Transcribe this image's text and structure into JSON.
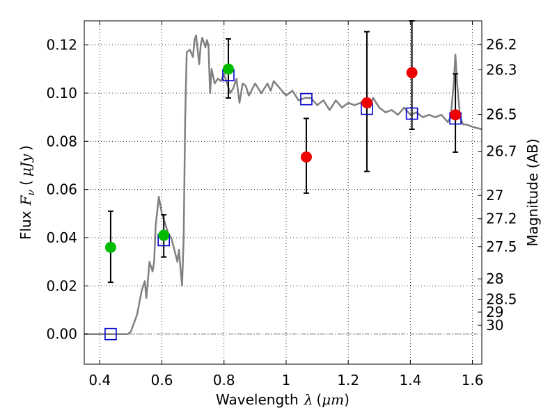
{
  "chart_data": {
    "type": "scatter",
    "xlabel": {
      "text": "Wavelength",
      "symbol": "λ",
      "unit_open": "(",
      "unit": "μm",
      "unit_close": ")"
    },
    "ylabel": {
      "text": "Flux",
      "symbol": "F",
      "subscript": "ν",
      "unit_open": "(",
      "unit": "μJy",
      "unit_close": ")"
    },
    "y2label": "Magnitude (AB)",
    "xlim": [
      0.35,
      1.63
    ],
    "ylim": [
      -0.0125,
      0.13
    ],
    "x_ticks": [
      {
        "v": 0.4,
        "label": "0.4"
      },
      {
        "v": 0.6,
        "label": "0.6"
      },
      {
        "v": 0.8,
        "label": "0.8"
      },
      {
        "v": 1.0,
        "label": "1"
      },
      {
        "v": 1.2,
        "label": "1.2"
      },
      {
        "v": 1.4,
        "label": "1.4"
      },
      {
        "v": 1.6,
        "label": "1.6"
      }
    ],
    "y_ticks": [
      {
        "v": 0.0,
        "label": "0.00"
      },
      {
        "v": 0.02,
        "label": "0.02"
      },
      {
        "v": 0.04,
        "label": "0.04"
      },
      {
        "v": 0.06,
        "label": "0.06"
      },
      {
        "v": 0.08,
        "label": "0.08"
      },
      {
        "v": 0.1,
        "label": "0.10"
      },
      {
        "v": 0.12,
        "label": "0.12"
      }
    ],
    "magnitude_ticks": [
      "26.2",
      "26.3",
      "26.5",
      "26.7",
      "27",
      "27.2",
      "27.5",
      "28",
      "28.5",
      "29",
      "30"
    ],
    "grid": true,
    "zero_line": true,
    "colors": {
      "model": "#808080",
      "model_points": "#0000cc",
      "green": "#00bb00",
      "red": "#ee0000",
      "errorbar": "#000000"
    },
    "model_sed": {
      "x": [
        0.35,
        0.49,
        0.5,
        0.52,
        0.535,
        0.545,
        0.55,
        0.56,
        0.57,
        0.575,
        0.58,
        0.59,
        0.6,
        0.61,
        0.62,
        0.63,
        0.64,
        0.65,
        0.655,
        0.66,
        0.665,
        0.67,
        0.675,
        0.68,
        0.69,
        0.7,
        0.705,
        0.71,
        0.715,
        0.72,
        0.725,
        0.73,
        0.74,
        0.745,
        0.75,
        0.755,
        0.76,
        0.77,
        0.78,
        0.79,
        0.8,
        0.81,
        0.82,
        0.83,
        0.84,
        0.85,
        0.86,
        0.87,
        0.88,
        0.9,
        0.92,
        0.94,
        0.95,
        0.96,
        0.98,
        1.0,
        1.02,
        1.04,
        1.06,
        1.08,
        1.1,
        1.12,
        1.14,
        1.16,
        1.18,
        1.2,
        1.22,
        1.24,
        1.25,
        1.26,
        1.27,
        1.28,
        1.29,
        1.3,
        1.32,
        1.34,
        1.36,
        1.38,
        1.4,
        1.42,
        1.44,
        1.46,
        1.48,
        1.5,
        1.52,
        1.53,
        1.54,
        1.545,
        1.55,
        1.56,
        1.57,
        1.58,
        1.6,
        1.63
      ],
      "y": [
        0.0,
        0.0,
        0.001,
        0.008,
        0.018,
        0.022,
        0.015,
        0.03,
        0.026,
        0.03,
        0.045,
        0.057,
        0.05,
        0.046,
        0.042,
        0.04,
        0.035,
        0.03,
        0.035,
        0.027,
        0.02,
        0.04,
        0.09,
        0.117,
        0.118,
        0.115,
        0.122,
        0.124,
        0.118,
        0.112,
        0.12,
        0.123,
        0.119,
        0.122,
        0.12,
        0.1,
        0.11,
        0.104,
        0.106,
        0.105,
        0.108,
        0.104,
        0.1,
        0.102,
        0.106,
        0.096,
        0.104,
        0.103,
        0.099,
        0.104,
        0.1,
        0.104,
        0.101,
        0.105,
        0.102,
        0.099,
        0.101,
        0.097,
        0.098,
        0.098,
        0.095,
        0.097,
        0.093,
        0.097,
        0.094,
        0.096,
        0.095,
        0.096,
        0.097,
        0.095,
        0.094,
        0.098,
        0.096,
        0.094,
        0.092,
        0.093,
        0.091,
        0.094,
        0.091,
        0.092,
        0.09,
        0.091,
        0.09,
        0.091,
        0.088,
        0.09,
        0.105,
        0.116,
        0.105,
        0.09,
        0.087,
        0.087,
        0.086,
        0.085
      ]
    },
    "model_points": [
      {
        "x": 0.435,
        "y": 0.0
      },
      {
        "x": 0.606,
        "y": 0.039
      },
      {
        "x": 0.814,
        "y": 0.1075
      },
      {
        "x": 1.065,
        "y": 0.0975
      },
      {
        "x": 1.26,
        "y": 0.0935
      },
      {
        "x": 1.405,
        "y": 0.0915
      },
      {
        "x": 1.545,
        "y": 0.0895
      }
    ],
    "observed_green": [
      {
        "x": 0.435,
        "y": 0.036,
        "ylo": 0.0215,
        "yhi": 0.051
      },
      {
        "x": 0.606,
        "y": 0.041,
        "ylo": 0.032,
        "yhi": 0.0495
      },
      {
        "x": 0.814,
        "y": 0.11,
        "ylo": 0.098,
        "yhi": 0.1225
      }
    ],
    "observed_red": [
      {
        "x": 1.065,
        "y": 0.0735,
        "ylo": 0.0585,
        "yhi": 0.0895
      },
      {
        "x": 1.26,
        "y": 0.096,
        "ylo": 0.0675,
        "yhi": 0.1255
      },
      {
        "x": 1.405,
        "y": 0.1085,
        "ylo": 0.085,
        "yhi": 0.13
      },
      {
        "x": 1.545,
        "y": 0.091,
        "ylo": 0.0755,
        "yhi": 0.108
      }
    ]
  }
}
